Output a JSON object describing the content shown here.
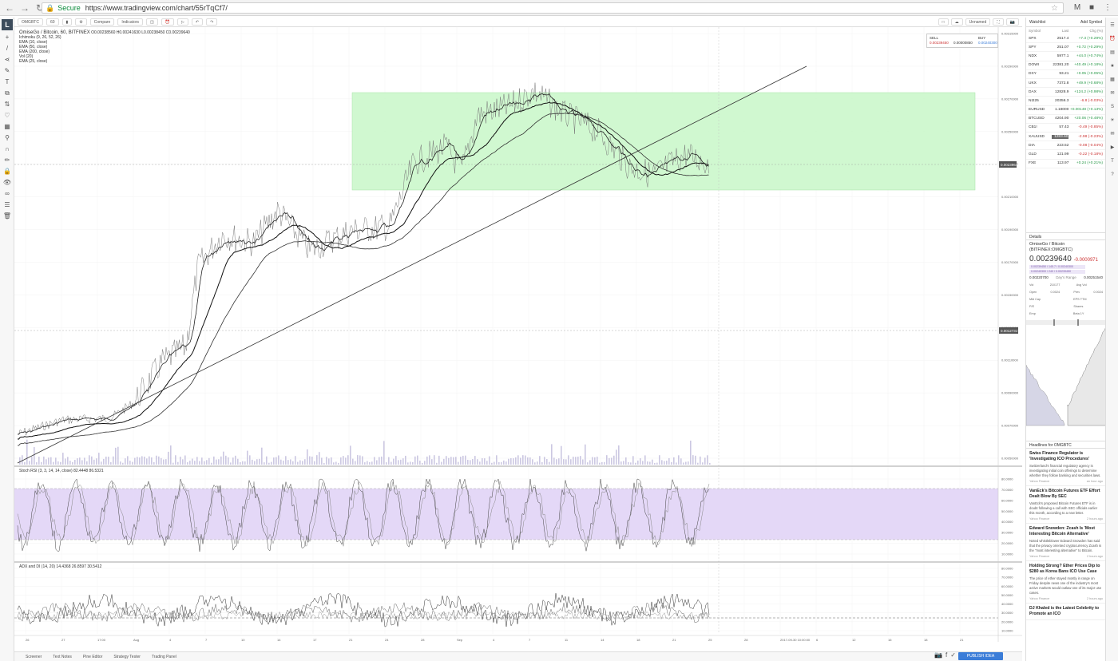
{
  "browser": {
    "secure_label": "Secure",
    "url": "https://www.tradingview.com/chart/55rTqCf7/"
  },
  "toolbar": {
    "symbol": "OMGBTC",
    "interval": "60",
    "compare_label": "Compare",
    "indicators_label": "Indicators",
    "unnamed_label": "Unnamed"
  },
  "legend": {
    "title": "OmiseGo / Bitcoin, 60, BITFINEX",
    "ohlc": "O0.00238560 H0.00241630 L0.00238450 C0.00239640",
    "lines": [
      "Ichimoku (9, 26, 52, 26)",
      "EMA (10, close)",
      "EMA (50, close)",
      "EMA (200, close)",
      "Vol (20)",
      "EMA (25, close)"
    ]
  },
  "trade": {
    "sell_label": "SELL",
    "sell_price": "0.00239450",
    "spread": "0.00000850",
    "buy_label": "BUY",
    "buy_price": "0.00240300"
  },
  "panes": {
    "rsi_label": "Stoch RSI (3, 3, 14, 14, close)",
    "rsi_values": "82.4448 86.5321",
    "adx_label": "ADX and DI (14, 20)",
    "adx_values": "14.4368 26.8597 30.5412"
  },
  "price_axis": {
    "ticks": [
      "0.00315000",
      "0.00290000",
      "0.00270000",
      "0.00250000",
      "0.00230000",
      "0.00210000",
      "0.00190000",
      "0.00170000",
      "0.00150000",
      "0.00130000",
      "0.00110000",
      "0.00090000",
      "0.00070000",
      "0.00050000"
    ],
    "current_label": "0.00239640",
    "crosshair_label": "0.00127317"
  },
  "rsi_axis": {
    "ticks": [
      "80.0000",
      "70.0000",
      "60.0000",
      "50.0000",
      "40.0000",
      "30.0000",
      "20.0000",
      "10.0000"
    ]
  },
  "adx_axis": {
    "ticks": [
      "80.0000",
      "70.0000",
      "60.0000",
      "50.0000",
      "40.0000",
      "30.0000",
      "20.0000",
      "10.0000"
    ]
  },
  "time_axis": {
    "ticks": [
      "26",
      "27",
      "17:00",
      "Aug",
      "4",
      "7",
      "10",
      "14",
      "17",
      "21",
      "24",
      "28",
      "Sep",
      "4",
      "7",
      "11",
      "14",
      "18",
      "21",
      "25",
      "28",
      "2017-09-30 10:00:00",
      "6",
      "12",
      "16",
      "18",
      "21"
    ]
  },
  "bottom_tabs": [
    "Screener",
    "Text Notes",
    "Pine Editor",
    "Strategy Tester",
    "Trading Panel"
  ],
  "publish_label": "PUBLISH IDEA",
  "watchlist": {
    "title": "Watchlist",
    "add_label": "Add Symbol",
    "columns": [
      "Symbol",
      "Last",
      "Chg (%)"
    ],
    "rows": [
      {
        "sym": "SPX",
        "last": "2517.4",
        "chg": "+7.3 (+0.29%)",
        "dir": "up"
      },
      {
        "sym": "SPY",
        "last": "251.07",
        "chg": "+0.72 (+0.29%)",
        "dir": "up"
      },
      {
        "sym": "NDX",
        "last": "5977.1",
        "chg": "+44.0 (+0.74%)",
        "dir": "up"
      },
      {
        "sym": "DOWI",
        "last": "22381.20",
        "chg": "+40.49 (+0.18%)",
        "dir": "up"
      },
      {
        "sym": "DXY",
        "last": "93.21",
        "chg": "+0.05 (+0.05%)",
        "dir": "up"
      },
      {
        "sym": "UKX",
        "last": "7372.8",
        "chg": "+49.9 (+0.68%)",
        "dir": "up"
      },
      {
        "sym": "DAX",
        "last": "12828.9",
        "chg": "+124.2 (+0.98%)",
        "dir": "up"
      },
      {
        "sym": "NI225",
        "last": "20356.3",
        "chg": "-6.8 (-0.03%)",
        "dir": "down"
      },
      {
        "sym": "EURUSD",
        "last": "1.18000",
        "chg": "+0.00148 (+0.13%)",
        "dir": "up"
      },
      {
        "sym": "BTCUSD",
        "last": "4204.90",
        "chg": "+20.06 (+0.48%)",
        "dir": "up"
      },
      {
        "sym": "CB1!",
        "last": "57.43",
        "chg": "-0.49 (-0.85%)",
        "dir": "down"
      },
      {
        "sym": "XAUUSD",
        "last": "1283.60",
        "chg": "-2.98 (-0.23%)",
        "dir": "down",
        "highlight": true
      },
      {
        "sym": "DIA",
        "last": "223.52",
        "chg": "-0.08 (-0.04%)",
        "dir": "down"
      },
      {
        "sym": "GLD",
        "last": "121.99",
        "chg": "-0.22 (-0.18%)",
        "dir": "down"
      },
      {
        "sym": "FXE",
        "last": "113.97",
        "chg": "+0.24 (+0.21%)",
        "dir": "up"
      }
    ]
  },
  "details": {
    "title": "Details",
    "name": "OmiseGo / Bitcoin (BITFINEX:OMGBTC)",
    "price": "0.00239640",
    "change": "-0.0000971",
    "pill1": "0.00239450 / 145.7 / 0.00240300",
    "pill2": "0.00240300 / 240 / 0.00239450",
    "range_low": "0.00220700",
    "range_label": "Day's Range",
    "range_high": "0.00251540",
    "grid": [
      [
        "Vol",
        "210177",
        "Avg Vol",
        ""
      ],
      [
        "Open",
        "0.0024",
        "Prev",
        "0.0024"
      ],
      [
        "Mkt Cap",
        "",
        "EPS TTM",
        ""
      ],
      [
        "P/E",
        "",
        "Shares",
        ""
      ],
      [
        "Emp",
        "",
        "Beta 1Y",
        ""
      ]
    ]
  },
  "news": {
    "title": "Headlines for OMGBTC",
    "items": [
      {
        "title": "Swiss Finance Regulator is 'Investigating ICO Procedures'",
        "body": "Switzerland's financial regulatory agency is investigating initial coin offerings to determine whether they follow banking and securities laws.",
        "source": "Yahoo Finance",
        "time": "an hour ago"
      },
      {
        "title": "VanEck's Bitcoin Futures ETF Effort Dealt Blow By SEC",
        "body": "VanEck's proposed Bitcoin Futures ETF is in doubt following a call with SEC officials earlier this month, according to a new letter.",
        "source": "Yahoo Finance",
        "time": "2 hours ago"
      },
      {
        "title": "Edward Snowden: Zcash Is 'Most Interesting Bitcoin Alternative'",
        "body": "Noted whistleblower Edward Snowden has said that the privacy oriented cryptocurrency Zcash is the \"most interesting alternative\" to Bitcoin.",
        "source": "Yahoo Finance",
        "time": "2 hours ago"
      },
      {
        "title": "Holding Strong? Ether Prices Dip to $280 as Korea Bans ICO Use Case",
        "body": "The price of ether stayed mostly in range on Friday despite news one of the industry's most active markets would outlaw one of its major use cases.",
        "source": "Yahoo Finance",
        "time": "2 hours ago"
      },
      {
        "title": "DJ Khaled is the Latest Celebrity to Promote an ICO",
        "body": "",
        "source": "",
        "time": ""
      }
    ]
  },
  "colors": {
    "rect_fill": "#c8f7c8",
    "rsi_band": "#e4d8f7",
    "line": "#2e2e2e",
    "accent": "#3b7dd8"
  }
}
